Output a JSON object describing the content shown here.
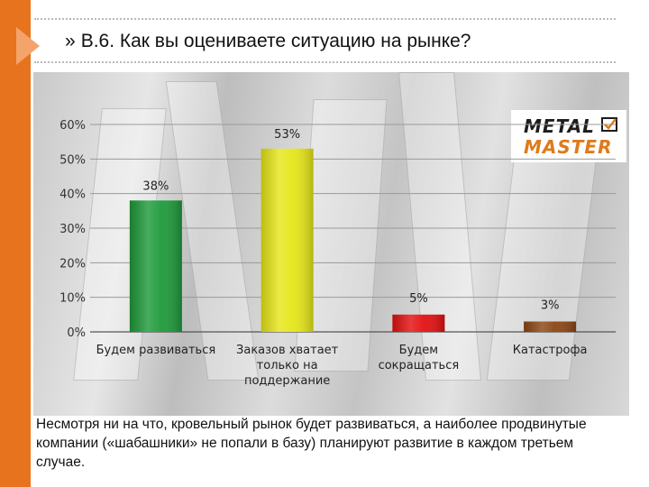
{
  "slide": {
    "title": "В.6. Как вы оцениваете ситуацию на рынке?",
    "title_bullet": "»",
    "caption": "Несмотря ни на что, кровельный рынок будет развиваться, а наиболее продвинутые компании («шабашники» не попали в базу) планируют развитие в каждом третьем случае.",
    "accent_color": "#e8731e"
  },
  "logo": {
    "line1": "METAL",
    "line2": "MASTER"
  },
  "chart_data": {
    "type": "bar",
    "categories": [
      [
        "Будем развиваться"
      ],
      [
        "Заказов хватает",
        "только на",
        "поддержание"
      ],
      [
        "Будем",
        "сокращаться"
      ],
      [
        "Катастрофа"
      ]
    ],
    "values": [
      38,
      53,
      5,
      3
    ],
    "value_labels": [
      "38%",
      "53%",
      "5%",
      "3%"
    ],
    "colors": [
      "#1e9a3a",
      "#e6e619",
      "#e31010",
      "#8b4513"
    ],
    "ylim": [
      0,
      60
    ],
    "yticks": [
      0,
      10,
      20,
      30,
      40,
      50,
      60
    ],
    "ytick_labels": [
      "0%",
      "10%",
      "20%",
      "30%",
      "40%",
      "50%",
      "60%"
    ],
    "grid": true,
    "legend": "none"
  }
}
